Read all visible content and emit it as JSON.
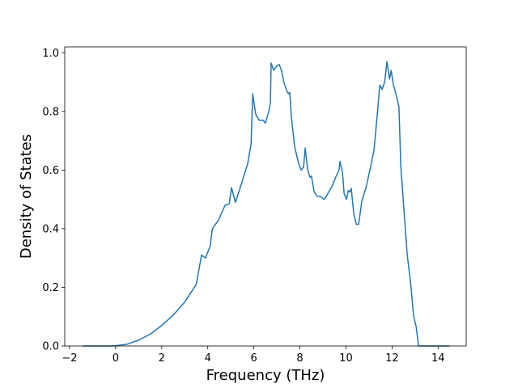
{
  "chart_data": {
    "type": "line",
    "x_label": "Frequency (THz)",
    "y_label": "Density of States",
    "xlim": [
      -2.21,
      15.22
    ],
    "ylim": [
      0,
      1.02
    ],
    "xticks": [
      {
        "value": -2,
        "label": "−2"
      },
      0,
      2,
      4,
      6,
      8,
      10,
      12,
      14
    ],
    "yticks": [
      {
        "value": 0,
        "label": "0.0"
      },
      0.2,
      0.4,
      0.6,
      0.8,
      {
        "value": 1,
        "label": "1.0"
      }
    ],
    "x": [
      -1.44,
      -0.1,
      0.5,
      1,
      1.5,
      2,
      2.5,
      3,
      3.5,
      3.73,
      3.9,
      4.1,
      4.2,
      4.47,
      4.75,
      4.93,
      5.03,
      5.2,
      5.45,
      5.6,
      5.73,
      5.88,
      5.95,
      6.08,
      6.23,
      6.4,
      6.5,
      6.65,
      6.72,
      6.75,
      6.86,
      7.0,
      7.1,
      7.2,
      7.3,
      7.43,
      7.5,
      7.56,
      7.63,
      7.77,
      7.92,
      8.05,
      8.16,
      8.23,
      8.34,
      8.44,
      8.5,
      8.62,
      8.75,
      8.9,
      9.04,
      9.1,
      9.25,
      9.4,
      9.55,
      9.7,
      9.74,
      9.85,
      9.92,
      10.02,
      10.1,
      10.17,
      10.23,
      10.34,
      10.45,
      10.55,
      10.69,
      10.87,
      11.08,
      11.22,
      11.36,
      11.47,
      11.57,
      11.68,
      11.78,
      11.89,
      11.96,
      12.06,
      12.2,
      12.3,
      12.38,
      12.52,
      12.66,
      12.8,
      12.94,
      13.05,
      13.15,
      14.49
    ],
    "series": [
      {
        "color": "#1f77b4",
        "values": [
          0,
          0,
          0.006,
          0.02,
          0.04,
          0.07,
          0.105,
          0.15,
          0.21,
          0.31,
          0.3,
          0.34,
          0.4,
          0.43,
          0.48,
          0.485,
          0.54,
          0.49,
          0.55,
          0.59,
          0.62,
          0.69,
          0.86,
          0.79,
          0.77,
          0.77,
          0.76,
          0.8,
          0.83,
          0.965,
          0.94,
          0.955,
          0.96,
          0.94,
          0.9,
          0.87,
          0.86,
          0.865,
          0.78,
          0.68,
          0.63,
          0.6,
          0.61,
          0.675,
          0.6,
          0.575,
          0.58,
          0.525,
          0.51,
          0.51,
          0.5,
          0.505,
          0.525,
          0.545,
          0.575,
          0.6,
          0.63,
          0.59,
          0.52,
          0.5,
          0.53,
          0.525,
          0.537,
          0.45,
          0.415,
          0.415,
          0.495,
          0.54,
          0.615,
          0.67,
          0.79,
          0.89,
          0.875,
          0.9,
          0.97,
          0.91,
          0.94,
          0.89,
          0.85,
          0.815,
          0.615,
          0.46,
          0.31,
          0.22,
          0.1,
          0.065,
          0,
          0
        ]
      }
    ]
  }
}
